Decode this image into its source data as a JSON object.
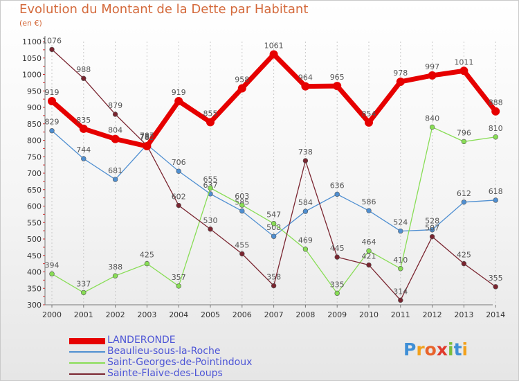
{
  "header": {
    "title": "Evolution du Montant de la Dette par Habitant",
    "subtitle": "(en €)"
  },
  "logo": {
    "letters": [
      "P",
      "r",
      "o",
      "x",
      "i",
      "t",
      "i"
    ],
    "colors": [
      "#3f8fd6",
      "#f2a11c",
      "#e8632b",
      "#e03a2d",
      "#7cbd3a",
      "#3f8fd6",
      "#f2a11c"
    ]
  },
  "chart_data": {
    "type": "line",
    "title": "Evolution du Montant de la Dette par Habitant",
    "subtitle": "(en €)",
    "xlabel": "",
    "ylabel": "",
    "x": [
      "2000",
      "2001",
      "2002",
      "2003",
      "2004",
      "2005",
      "2006",
      "2007",
      "2008",
      "2009",
      "2010",
      "2011",
      "2012",
      "2013",
      "2014"
    ],
    "ylim": [
      300,
      1100
    ],
    "yticks": [
      300,
      350,
      400,
      450,
      500,
      550,
      600,
      650,
      700,
      750,
      800,
      850,
      900,
      950,
      1000,
      1050,
      1100
    ],
    "grid": "vertical dotted",
    "legend_position": "bottom-left",
    "series": [
      {
        "name": "LANDERONDE",
        "color": "#e60000",
        "highlight": true,
        "values": [
          919,
          835,
          804,
          782,
          919,
          855,
          958,
          1061,
          964,
          965,
          854,
          978,
          997,
          1011,
          888
        ],
        "labels": [
          "919",
          "835",
          "804",
          "782",
          "919",
          "855",
          "958",
          "1061",
          "964",
          "965",
          "854",
          "978",
          "997",
          "1011",
          "888"
        ]
      },
      {
        "name": "Beaulieu-sous-la-Roche",
        "color": "#4f8fd1",
        "highlight": false,
        "values": [
          829,
          744,
          681,
          787,
          706,
          637,
          585,
          508,
          584,
          636,
          586,
          524,
          528,
          612,
          618
        ],
        "labels": [
          "829",
          "744",
          "681",
          "787",
          "706",
          "637",
          "585",
          "508",
          "584",
          "636",
          "586",
          "524",
          "528",
          "612",
          "618"
        ]
      },
      {
        "name": "Saint-Georges-de-Pointindoux",
        "color": "#88dd55",
        "highlight": false,
        "values": [
          394,
          337,
          388,
          425,
          357,
          655,
          603,
          547,
          469,
          335,
          464,
          410,
          840,
          796,
          810
        ],
        "labels": [
          "394",
          "337",
          "388",
          "425",
          "357",
          "655",
          "603",
          "547",
          "469",
          "335",
          "464",
          "410",
          "840",
          "796",
          "810"
        ]
      },
      {
        "name": "Sainte-Flaive-des-Loups",
        "color": "#7a2530",
        "highlight": false,
        "values": [
          1076,
          988,
          879,
          784,
          602,
          530,
          455,
          358,
          738,
          445,
          421,
          314,
          507,
          425,
          355
        ],
        "labels": [
          "1076",
          "988",
          "879",
          "784",
          "602",
          "530",
          "455",
          "358",
          "738",
          "445",
          "421",
          "314",
          "507",
          "425",
          "355"
        ]
      }
    ]
  }
}
